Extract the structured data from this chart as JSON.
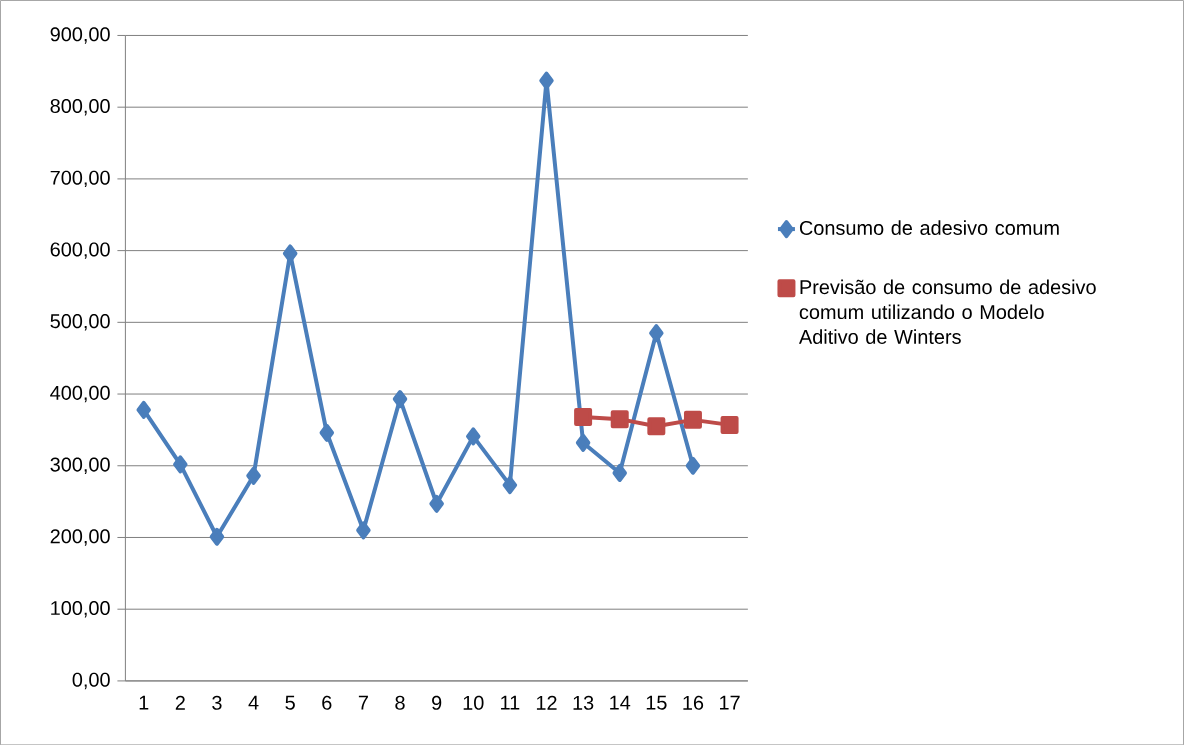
{
  "chart_data": {
    "type": "line",
    "categories": [
      "1",
      "2",
      "3",
      "4",
      "5",
      "6",
      "7",
      "8",
      "9",
      "10",
      "11",
      "12",
      "13",
      "14",
      "15",
      "16",
      "17"
    ],
    "series": [
      {
        "name": "Consumo de adesivo comum",
        "color": "#4a7ebb",
        "marker": "diamond",
        "values": [
          378,
          302,
          201,
          286,
          596,
          346,
          210,
          393,
          247,
          341,
          273,
          837,
          332,
          290,
          485,
          300,
          null
        ]
      },
      {
        "name": "Previsão de consumo de adesivo comum utilizando o Modelo Aditivo de Winters",
        "color": "#be4b48",
        "marker": "square",
        "values": [
          null,
          null,
          null,
          null,
          null,
          null,
          null,
          null,
          null,
          null,
          null,
          null,
          368,
          365,
          355,
          364,
          357
        ]
      }
    ],
    "ylim": [
      0,
      900
    ],
    "yticks": [
      {
        "value": 0,
        "label": "0,00"
      },
      {
        "value": 100,
        "label": "100,00"
      },
      {
        "value": 200,
        "label": "200,00"
      },
      {
        "value": 300,
        "label": "300,00"
      },
      {
        "value": 400,
        "label": "400,00"
      },
      {
        "value": 500,
        "label": "500,00"
      },
      {
        "value": 600,
        "label": "600,00"
      },
      {
        "value": 700,
        "label": "700,00"
      },
      {
        "value": 800,
        "label": "800,00"
      },
      {
        "value": 900,
        "label": "900,00"
      }
    ],
    "grid": "y",
    "legend": "right",
    "line_style": "solid"
  }
}
